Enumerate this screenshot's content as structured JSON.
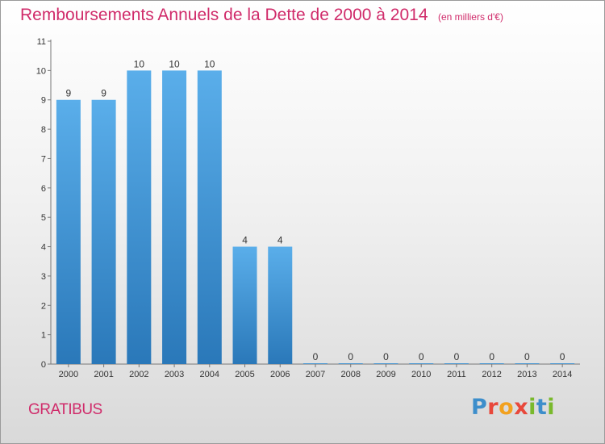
{
  "header": {
    "title": "Remboursements Annuels de la Dette de 2000 à 2014",
    "subtitle": "(en milliers d'€)"
  },
  "footer": {
    "commune": "GRATIBUS",
    "brand": "Proxiti"
  },
  "colors": {
    "title": "#d02b6a",
    "bar_top": "#5aaeea",
    "bar_bottom": "#2a78b9",
    "logo_letters": [
      "#3d8ecb",
      "#e8483b",
      "#f2a11f",
      "#e8483b",
      "#79b92c",
      "#3d8ecb",
      "#79b92c"
    ]
  },
  "chart_data": {
    "type": "bar",
    "categories": [
      "2000",
      "2001",
      "2002",
      "2003",
      "2004",
      "2005",
      "2006",
      "2007",
      "2008",
      "2009",
      "2010",
      "2011",
      "2012",
      "2013",
      "2014"
    ],
    "values": [
      9,
      9,
      10,
      10,
      10,
      4,
      4,
      0,
      0,
      0,
      0,
      0,
      0,
      0,
      0
    ],
    "data_labels": [
      "9",
      "9",
      "10",
      "10",
      "10",
      "4",
      "4",
      "0",
      "0",
      "0",
      "0",
      "0",
      "0",
      "0",
      "0"
    ],
    "yticks": [
      0,
      1,
      2,
      3,
      4,
      5,
      6,
      7,
      8,
      9,
      10,
      11
    ],
    "ylim": [
      0,
      11
    ],
    "xlabel": "",
    "ylabel": "",
    "grid": false,
    "legend": "none"
  }
}
